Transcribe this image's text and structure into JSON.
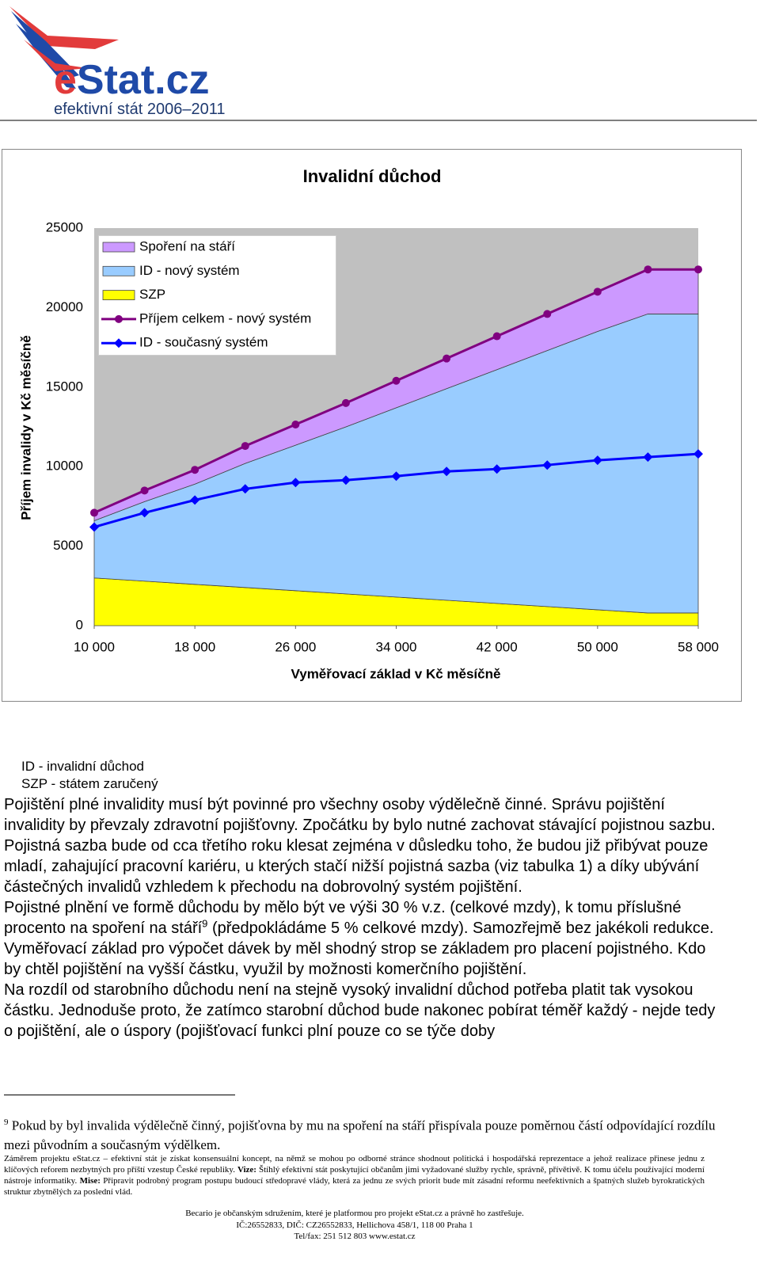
{
  "logo": {
    "first": "e",
    "rest": "Stat.cz",
    "tagline": "efektivní stát 2006–2011"
  },
  "chart_data": {
    "type": "area",
    "title": "Invalidní důchod",
    "x_label": "Vyměřovací základ v Kč měsíčně",
    "y_label": "Příjem invalidy v Kč měsíčně",
    "x": [
      10000,
      14000,
      18000,
      22000,
      26000,
      30000,
      34000,
      38000,
      42000,
      46000,
      50000,
      54000,
      58000
    ],
    "xlim": [
      10000,
      58000
    ],
    "xticks": [
      {
        "value": 10000,
        "label": "10 000"
      },
      {
        "value": 18000,
        "label": "18 000"
      },
      {
        "value": 26000,
        "label": "26 000"
      },
      {
        "value": 34000,
        "label": "34 000"
      },
      {
        "value": 42000,
        "label": "42 000"
      },
      {
        "value": 50000,
        "label": "50 000"
      },
      {
        "value": 58000,
        "label": "58 000"
      }
    ],
    "ylim": [
      0,
      25000
    ],
    "yticks": [
      0,
      5000,
      10000,
      15000,
      20000,
      25000
    ],
    "grid": false,
    "stacked": true,
    "legend": "upper-left",
    "series": [
      {
        "name": "Spoření na stáří",
        "type": "area",
        "color": "#cc99ff",
        "values": [
          500,
          700,
          900,
          1100,
          1300,
          1500,
          1700,
          1900,
          2100,
          2300,
          2500,
          2800,
          2800
        ]
      },
      {
        "name": "ID - nový systém",
        "type": "area",
        "color": "#99ccff",
        "values": [
          3600,
          5000,
          6300,
          7800,
          9150,
          10500,
          11900,
          13300,
          14700,
          16100,
          17500,
          18800,
          18800
        ]
      },
      {
        "name": "SZP",
        "type": "area",
        "color": "#ffff00",
        "values": [
          3000,
          2800,
          2600,
          2400,
          2200,
          2000,
          1800,
          1600,
          1400,
          1200,
          1000,
          800,
          800
        ]
      },
      {
        "name": "Příjem celkem - nový systém",
        "type": "line",
        "marker": "circle",
        "color": "#800080",
        "values": [
          7100,
          8500,
          9800,
          11300,
          12650,
          14000,
          15400,
          16800,
          18200,
          19600,
          21000,
          22400,
          22400
        ]
      },
      {
        "name": "ID - současný systém",
        "type": "line",
        "marker": "diamond",
        "color": "#0000ff",
        "values": [
          6200,
          7100,
          7900,
          8600,
          9000,
          9150,
          9400,
          9700,
          9850,
          10100,
          10400,
          10600,
          10800
        ]
      }
    ]
  },
  "chart_notes": [
    "ID - invalidní důchod",
    "SZP - státem zaručený"
  ],
  "body": {
    "p1": "Pojištění plné invalidity musí být povinné pro všechny osoby výdělečně činné. Správu pojištění invalidity by převzaly zdravotní pojišťovny. Zpočátku by bylo nutné zachovat stávající pojistnou sazbu. Pojistná sazba bude od cca třetího roku klesat zejména v důsledku toho, že budou již přibývat pouze mladí, zahajující pracovní kariéru, u kterých stačí nižší pojistná sazba (viz tabulka 1) a díky ubývání částečných invalidů vzhledem k přechodu na dobrovolný systém pojištění.",
    "p2_before": "Pojistné plnění ve formě důchodu by mělo být ve výši 30 % v.z. (celkové mzdy), k tomu příslušné procento na spoření na stáří",
    "p2_ref": "9",
    "p2_after": " (předpokládáme 5 % celkové mzdy). Samozřejmě bez jakékoli redukce. Vyměřovací základ pro výpočet dávek by měl shodný strop se základem pro placení pojistného. Kdo by chtěl pojištění na vyšší částku, využil by možnosti komerčního pojištění.",
    "p3": "Na rozdíl od starobního důchodu není na stejně vysoký invalidní důchod potřeba platit tak vysokou částku. Jednoduše proto, že zatímco starobní důchod bude nakonec pobírat téměř každý  - nejde tedy o pojištění, ale o úspory (pojišťovací funkci plní pouze co se týče doby"
  },
  "footnote": {
    "number": "9",
    "text": " Pokud by byl invalida výdělečně činný, pojišťovna by mu na spoření na stáří přispívala pouze poměrnou částí odpovídající rozdílu mezi původním a současným výdělkem."
  },
  "footer": {
    "aim": "Záměrem projektu eStat.cz – efektivní stát je získat konsensuální koncept, na němž se mohou po odborné stránce shodnout politická i hospodářská reprezentace a jehož realizace přinese jednu z klíčových reforem nezbytných pro příští vzestup České republiky. ",
    "vision_label": "Vize:",
    "vision": " Štíhlý efektivní stát poskytující občanům jimi vyžadované služby rychle, správně, přívětivě. K tomu účelu používající moderní nástroje informatiky. ",
    "mission_label": "Mise:",
    "mission": " Připravit podrobný program postupu budoucí středopravé vlády, která za jednu ze svých priorit bude mít zásadní reformu neefektivních a špatných služeb byrokratických struktur zbytnělých za poslední vlád.",
    "contact": [
      "Becario je občanským sdružením, které je platformou pro projekt eStat.cz a právně ho zastřešuje.",
      "IČ:26552833, DIČ: CZ26552833, Hellichova 458/1, 118 00 Praha 1",
      "Tel/fax: 251 512 803 www.estat.cz"
    ]
  }
}
